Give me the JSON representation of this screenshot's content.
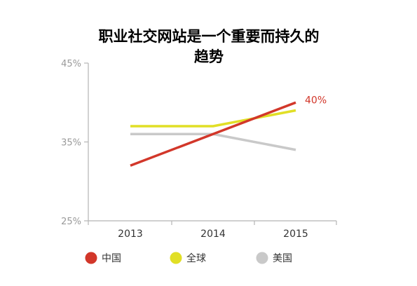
{
  "chart_data": {
    "type": "line",
    "title_lines": [
      "职业社交网站是一个重要而持久的",
      "趋势"
    ],
    "x": [
      "2013",
      "2014",
      "2015"
    ],
    "ylim": [
      25,
      45
    ],
    "yticks": [
      "45%",
      "35%",
      "25%"
    ],
    "ytick_values": [
      45,
      35,
      25
    ],
    "grid": false,
    "legend_placement": "bottom",
    "series": [
      {
        "name": "中国",
        "values": [
          32,
          36,
          40
        ],
        "color": "#d2372a"
      },
      {
        "name": "全球",
        "values": [
          37,
          37,
          39
        ],
        "color": "#e1df26"
      },
      {
        "name": "美国",
        "values": [
          36,
          36,
          34
        ],
        "color": "#c9c9c9"
      }
    ],
    "annotations": [
      {
        "series": "中国",
        "index": 2,
        "text": "40%",
        "color": "#d2372a"
      }
    ],
    "colors": {
      "axis": "#b5b5b5",
      "tick_label": "#9a9a9a",
      "x_label": "#333333",
      "title": "#111111",
      "legend_text": "#333333"
    }
  }
}
